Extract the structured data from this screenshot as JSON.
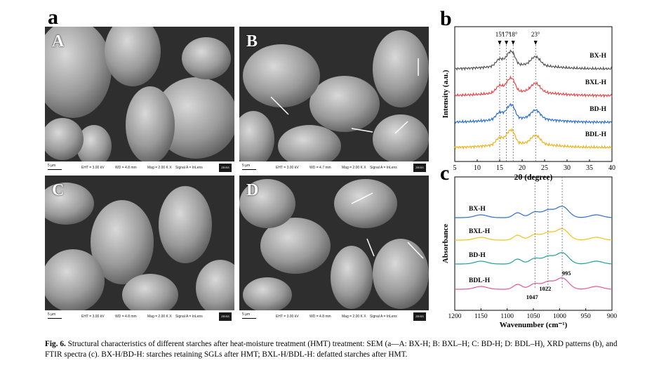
{
  "panel_labels": {
    "a": "a",
    "b": "b",
    "c": "c"
  },
  "sem": {
    "panels": [
      {
        "letter": "A",
        "scale": "5 µm",
        "eht": "EHT = 3.00 kV",
        "wd": "WD = 4.8 mm",
        "mag": "Mag = 2.00 K X",
        "signal": "Signal A = InLens",
        "logo": "ZEISS"
      },
      {
        "letter": "B",
        "scale": "5 µm",
        "eht": "EHT = 3.00 kV",
        "wd": "WD = 4.7 mm",
        "mag": "Mag = 2.00 K X",
        "signal": "Signal A = InLens",
        "logo": "ZEISS"
      },
      {
        "letter": "C",
        "scale": "5 µm",
        "eht": "EHT = 3.00 kV",
        "wd": "WD = 4.8 mm",
        "mag": "Mag = 2.00 K X",
        "signal": "Signal A = InLens",
        "logo": "ZEISS"
      },
      {
        "letter": "D",
        "scale": "5 µm",
        "eht": "EHT = 3.00 kV",
        "wd": "WD = 4.8 mm",
        "mag": "Mag = 2.00 K X",
        "signal": "Signal A = InLens",
        "logo": "ZEISS"
      }
    ]
  },
  "chart_data": [
    {
      "type": "line",
      "panel": "b",
      "xlabel": "2θ (degree)",
      "ylabel": "Intensity (a.u.)",
      "xlim": [
        5,
        40
      ],
      "xticks": [
        5,
        10,
        15,
        20,
        25,
        30,
        35,
        40
      ],
      "peak_annotations": [
        {
          "label": "15°",
          "x": 15
        },
        {
          "label": "17°",
          "x": 16.5
        },
        {
          "label": "18°",
          "x": 18
        },
        {
          "label": "23°",
          "x": 23
        }
      ],
      "series": [
        {
          "name": "BX-H",
          "color": "#555555"
        },
        {
          "name": "BXL-H",
          "color": "#e8464a"
        },
        {
          "name": "BD-H",
          "color": "#2b6fd6"
        },
        {
          "name": "BDL-H",
          "color": "#f0b21a"
        }
      ]
    },
    {
      "type": "line",
      "panel": "c",
      "xlabel": "Wavenumber (cm⁻¹)",
      "ylabel": "Absorbance",
      "xlim": [
        1200,
        900
      ],
      "xticks": [
        1200,
        1150,
        1100,
        1050,
        1000,
        950,
        900
      ],
      "peak_annotations": [
        {
          "label": "1047",
          "x": 1047
        },
        {
          "label": "1022",
          "x": 1022
        },
        {
          "label": "995",
          "x": 995
        }
      ],
      "series": [
        {
          "name": "BX-H",
          "color": "#2a6fd1"
        },
        {
          "name": "BXL-H",
          "color": "#f2c418"
        },
        {
          "name": "BD-H",
          "color": "#1fa29a"
        },
        {
          "name": "BDL-H",
          "color": "#e8559a"
        }
      ]
    }
  ],
  "caption": {
    "fig": "Fig. 6.",
    "text": " Structural characteristics of different starches after heat-moisture treatment (HMT) treatment: SEM (a—A: BX-H; B: BXL–H; C: BD-H; D: BDL–H), XRD patterns (b), and FTIR spectra (c). BX-H/BD-H: starches retaining SGLs after HMT; BXL-H/BDL-H: defatted starches after HMT."
  }
}
